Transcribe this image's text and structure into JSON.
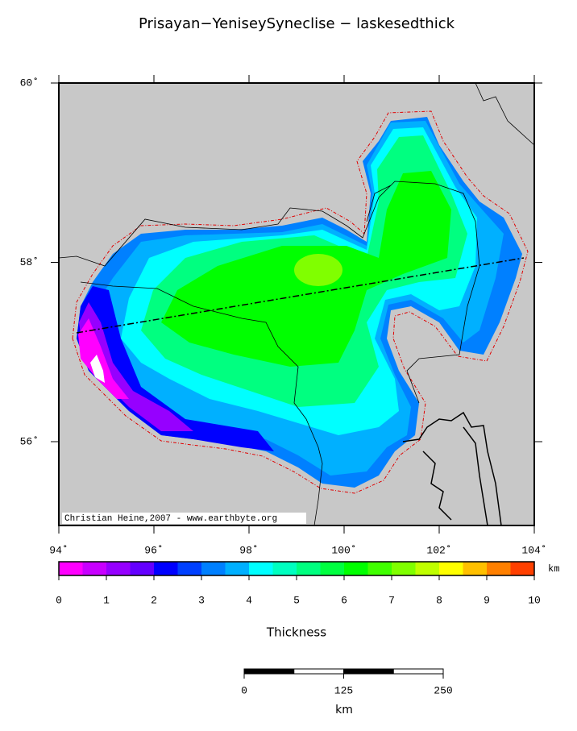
{
  "title": "Prisayan−YeniseySyneclise − laskesedthick",
  "map": {
    "lat_ticks": [
      {
        "value": 60,
        "label": "60˚"
      },
      {
        "value": 58,
        "label": "58˚"
      },
      {
        "value": 56,
        "label": "56˚"
      }
    ],
    "lon_ticks": [
      {
        "value": 94,
        "label": "94˚"
      },
      {
        "value": 96,
        "label": "96˚"
      },
      {
        "value": 98,
        "label": "98˚"
      },
      {
        "value": 100,
        "label": "100˚"
      },
      {
        "value": 102,
        "label": "102˚"
      },
      {
        "value": 104,
        "label": "104˚"
      }
    ],
    "credit": "Christian Heine,2007 - www.earthbyte.org"
  },
  "colorbar": {
    "ticks": [
      0,
      1,
      2,
      3,
      4,
      5,
      6,
      7,
      8,
      9,
      10
    ],
    "unit": "km",
    "label": "Thickness",
    "colors": [
      "#ff00ff",
      "#c800ff",
      "#9600ff",
      "#6400ff",
      "#0000ff",
      "#0040ff",
      "#0080ff",
      "#00b0ff",
      "#00ffff",
      "#00ffc0",
      "#00ff80",
      "#00ff40",
      "#00ff00",
      "#40ff00",
      "#80ff00",
      "#c0ff00",
      "#ffff00",
      "#ffc000",
      "#ff8000",
      "#ff4000"
    ]
  },
  "scale_bar": {
    "ticks": [
      0,
      125,
      250
    ],
    "unit": "km"
  }
}
